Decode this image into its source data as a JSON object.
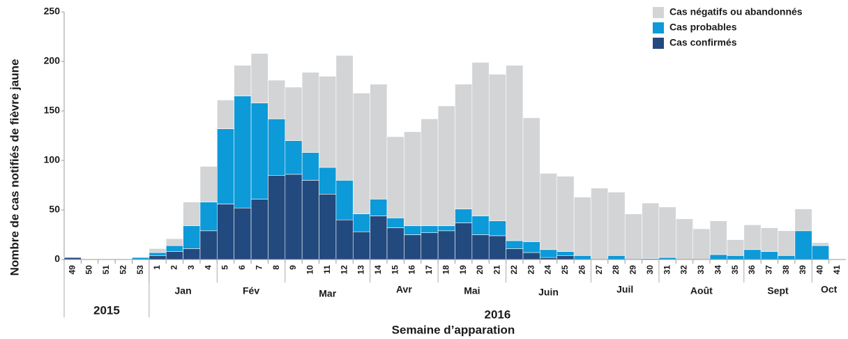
{
  "chart_data": {
    "type": "stacked-bar",
    "y_label": "Nombre de cas notifiés de fièvre jaune",
    "x_label": "Semaine d’apparation",
    "categories": [
      "49",
      "50",
      "51",
      "52",
      "53",
      "1",
      "2",
      "3",
      "4",
      "5",
      "6",
      "7",
      "8",
      "9",
      "10",
      "11",
      "12",
      "13",
      "14",
      "15",
      "16",
      "17",
      "18",
      "19",
      "20",
      "21",
      "22",
      "23",
      "24",
      "25",
      "26",
      "27",
      "28",
      "29",
      "30",
      "31",
      "32",
      "33",
      "34",
      "35",
      "36",
      "37",
      "38",
      "39",
      "40",
      "41"
    ],
    "months": [
      "Jan",
      "Fév",
      "Mar",
      "Avr",
      "Mai",
      "Juin",
      "Juil",
      "Août",
      "Sept",
      "Oct"
    ],
    "years": [
      "2015",
      "2016"
    ],
    "series": [
      {
        "name": "Cas confirmés",
        "color": "#234a7e",
        "values": [
          2,
          0,
          0,
          0,
          0,
          4,
          8,
          11,
          29,
          56,
          52,
          61,
          85,
          86,
          80,
          66,
          40,
          28,
          44,
          32,
          25,
          27,
          29,
          37,
          25,
          24,
          11,
          7,
          2,
          4,
          0,
          0,
          0,
          0,
          0,
          0,
          0,
          0,
          0,
          0,
          0,
          0,
          0,
          0,
          0,
          0
        ]
      },
      {
        "name": "Cas probables",
        "color": "#0d9ad8",
        "values": [
          0,
          0,
          0,
          0,
          2,
          3,
          6,
          23,
          29,
          76,
          113,
          97,
          57,
          34,
          28,
          27,
          40,
          18,
          17,
          10,
          9,
          7,
          5,
          14,
          19,
          15,
          8,
          11,
          8,
          4,
          4,
          0,
          4,
          0,
          1,
          2,
          0,
          0,
          5,
          4,
          10,
          8,
          4,
          29,
          14,
          0
        ]
      },
      {
        "name": "Cas négatifs ou abandonnés",
        "color": "#d3d4d6",
        "values": [
          0,
          0,
          0,
          0,
          0,
          4,
          7,
          24,
          36,
          29,
          31,
          50,
          39,
          54,
          81,
          92,
          126,
          122,
          116,
          82,
          95,
          108,
          121,
          126,
          155,
          148,
          177,
          125,
          77,
          76,
          59,
          72,
          64,
          46,
          56,
          51,
          41,
          31,
          34,
          16,
          25,
          24,
          25,
          22,
          3,
          0
        ]
      }
    ],
    "ylim": [
      0,
      250
    ],
    "yticks": [
      0,
      50,
      100,
      150,
      200,
      250
    ]
  }
}
